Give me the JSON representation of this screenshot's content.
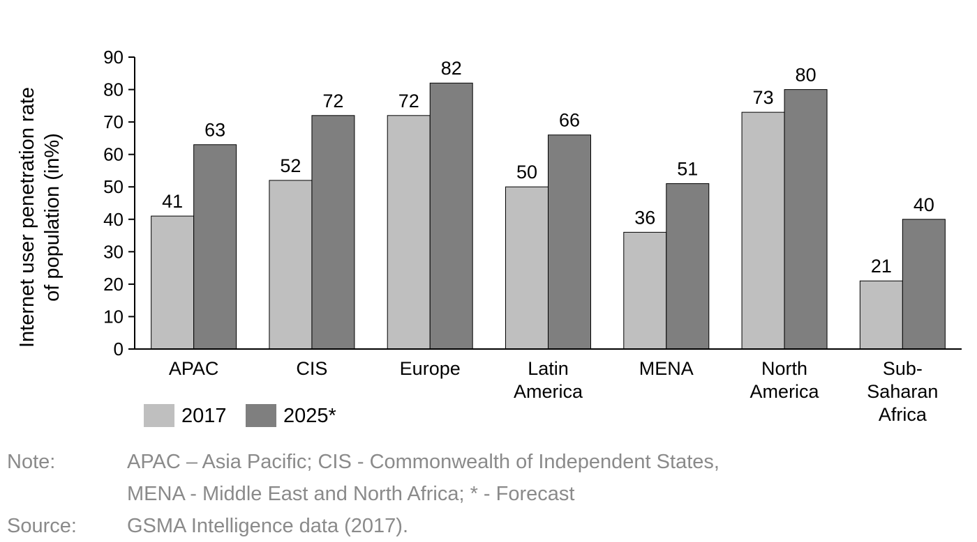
{
  "chart_data": {
    "type": "bar",
    "ylabel": "Internet user penetration rate of population (in%)",
    "ylabel_lines": [
      "Internet user penetration rate",
      "of population (in%)"
    ],
    "ylim": [
      0,
      90
    ],
    "yticks": [
      0,
      10,
      20,
      30,
      40,
      50,
      60,
      70,
      80,
      90
    ],
    "categories": [
      "APAC",
      "CIS",
      "Europe",
      "Latin America",
      "MENA",
      "North America",
      "Sub-Saharan Africa"
    ],
    "category_lines": [
      [
        "APAC"
      ],
      [
        "CIS"
      ],
      [
        "Europe"
      ],
      [
        "Latin",
        "America"
      ],
      [
        "MENA"
      ],
      [
        "North",
        "America"
      ],
      [
        "Sub-",
        "Saharan",
        "Africa"
      ]
    ],
    "series": [
      {
        "name": "2017",
        "values": [
          41,
          52,
          72,
          50,
          36,
          73,
          21
        ],
        "color": "#bfbfbf"
      },
      {
        "name": "2025*",
        "values": [
          63,
          72,
          82,
          66,
          51,
          80,
          40
        ],
        "color": "#7f7f7f"
      }
    ],
    "grid": false,
    "legend_position": "bottom-left"
  },
  "notes": {
    "note_label": "Note:",
    "note_line1": "APAC – Asia Pacific; CIS - Commonwealth of Independent States,",
    "note_line2": "MENA - Middle East and North Africa; * - Forecast",
    "source_label": "Source:",
    "source_text": "GSMA Intelligence data (2017)."
  }
}
